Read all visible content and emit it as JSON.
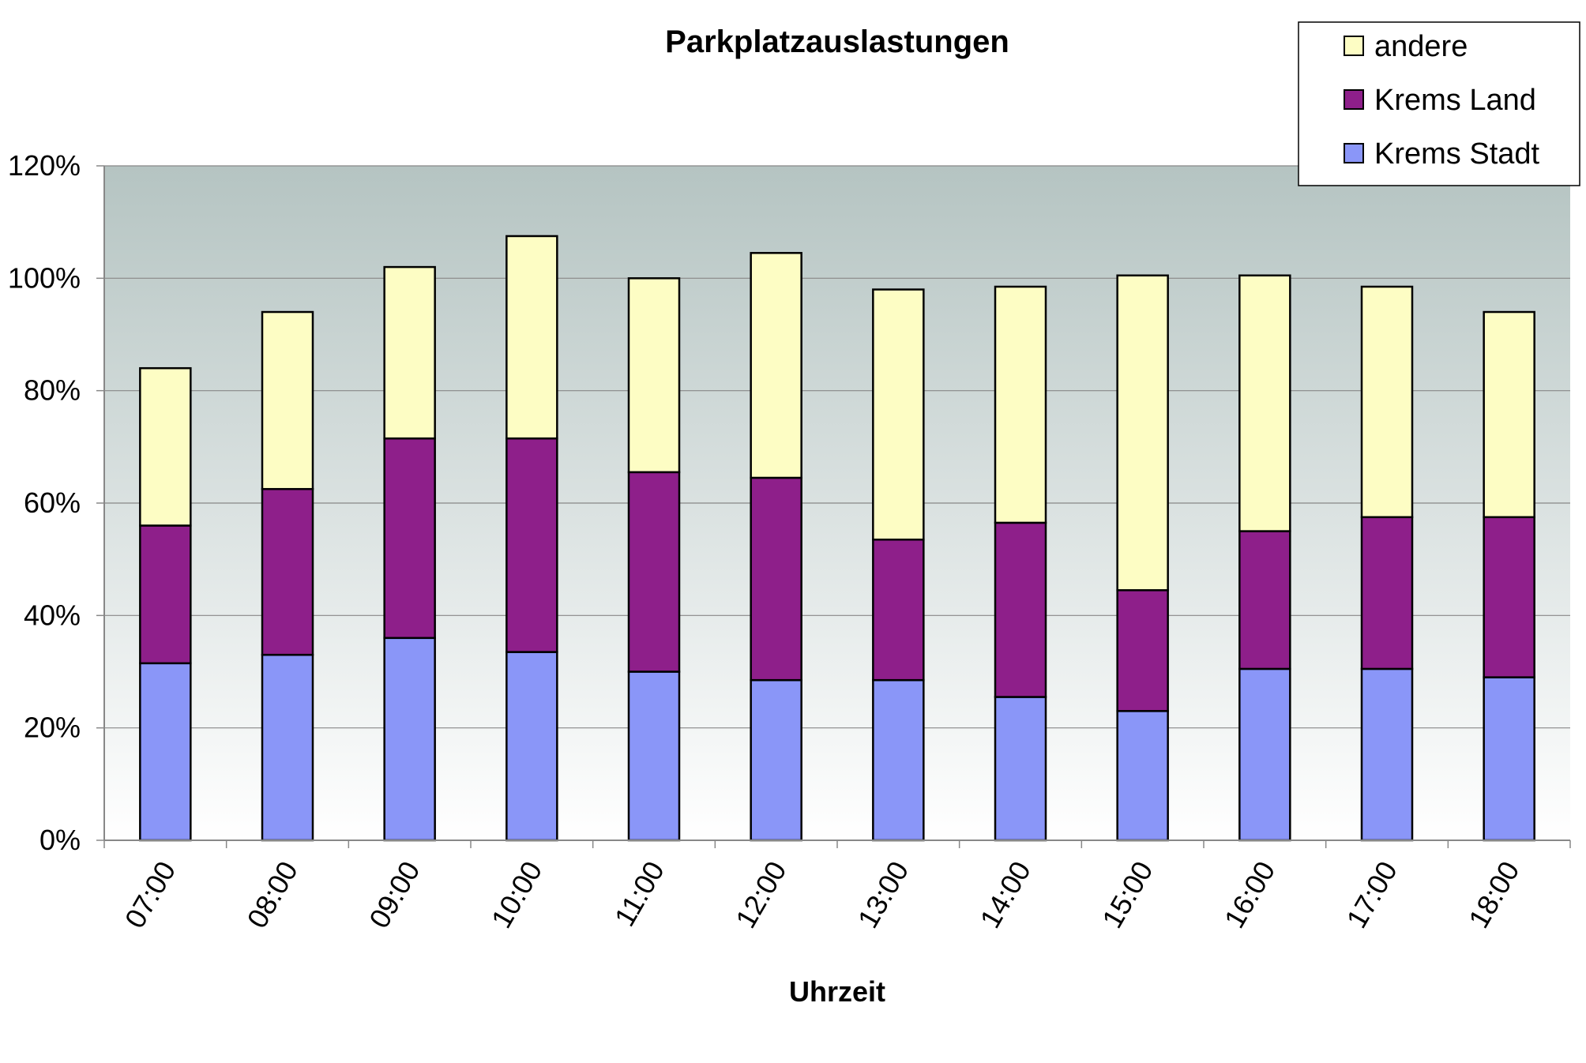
{
  "chart_data": {
    "type": "bar",
    "stacked": true,
    "title": "Parkplatzauslastungen",
    "xlabel": "Uhrzeit",
    "ylabel": "",
    "ylim": [
      0,
      120
    ],
    "yticks": [
      0,
      20,
      40,
      60,
      80,
      100,
      120
    ],
    "ytick_labels": [
      "0%",
      "20%",
      "40%",
      "60%",
      "80%",
      "100%",
      "120%"
    ],
    "grid": true,
    "legend_position": "top-right",
    "categories": [
      "07:00",
      "08:00",
      "09:00",
      "10:00",
      "11:00",
      "12:00",
      "13:00",
      "14:00",
      "15:00",
      "16:00",
      "17:00",
      "18:00"
    ],
    "series": [
      {
        "name": "Krems Stadt",
        "color": "#8A96F8",
        "values": [
          31.5,
          33,
          36,
          33.5,
          30,
          28.5,
          28.5,
          25.5,
          23,
          30.5,
          30.5,
          29
        ]
      },
      {
        "name": "Krems Land",
        "color": "#8E1F8A",
        "values": [
          24.5,
          29.5,
          35.5,
          38,
          35.5,
          36,
          25,
          31,
          21.5,
          24.5,
          27,
          28.5
        ]
      },
      {
        "name": "andere",
        "color": "#FDFDC4",
        "values": [
          28,
          31.5,
          30.5,
          36,
          34.5,
          40,
          44.5,
          42,
          56,
          45.5,
          41,
          36.5
        ]
      }
    ],
    "legend_order": [
      "andere",
      "Krems Land",
      "Krems Stadt"
    ],
    "plot_background": [
      "#B5C4C2",
      "#FFFFFF"
    ]
  }
}
